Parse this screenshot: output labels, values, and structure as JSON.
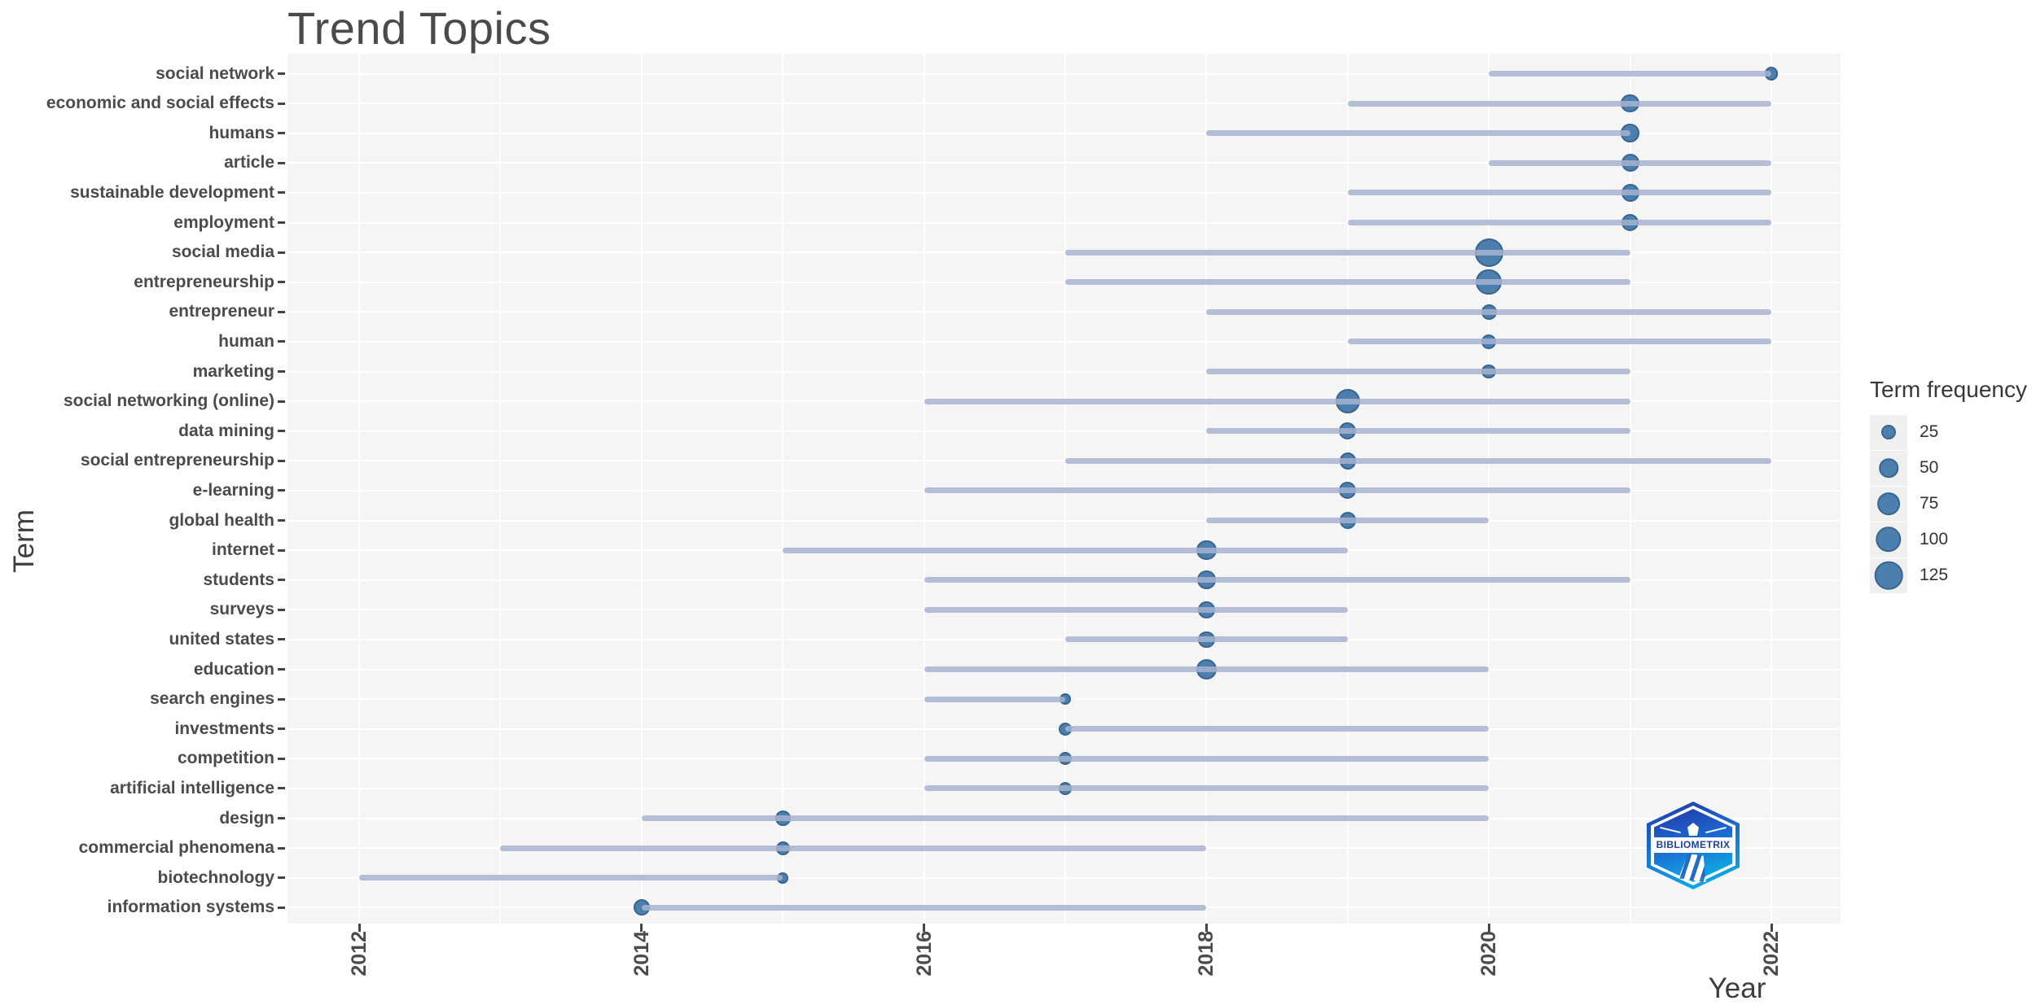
{
  "title": "Trend Topics",
  "x_axis": {
    "title": "Year",
    "tick_labels": [
      "2012",
      "2014",
      "2016",
      "2018",
      "2020",
      "2022"
    ]
  },
  "y_axis": {
    "title": "Term"
  },
  "legend": {
    "title": "Term frequency",
    "entries": [
      "25",
      "50",
      "75",
      "100",
      "125"
    ]
  },
  "logo": {
    "text": "BIBLIOMETRIX"
  },
  "colors": {
    "bubble_fill": "#4d7fae",
    "bubble_stroke": "#38658f",
    "trend_line": "rgba(167,179,208,0.85)",
    "panel_background": "#f5f5f6",
    "gridline": "#ffffff",
    "axis_text": "#4b4b4b",
    "title_text": "#4a4a4a"
  },
  "chart_data": {
    "type": "scatter",
    "title": "Trend Topics",
    "xlabel": "Year",
    "ylabel": "Term",
    "xlim": [
      2011.5,
      2022.5
    ],
    "x_ticks": [
      2012,
      2014,
      2016,
      2018,
      2020,
      2022
    ],
    "grid": true,
    "legend": {
      "title": "Term frequency",
      "position": "right-center",
      "sizes": [
        25,
        50,
        75,
        100,
        125
      ]
    },
    "rows": [
      {
        "term": "social network",
        "year_start": 2020,
        "year_end": 2022,
        "peak_year": 2022,
        "frequency": 20
      },
      {
        "term": "economic and social effects",
        "year_start": 2019,
        "year_end": 2022,
        "peak_year": 2021,
        "frequency": 45
      },
      {
        "term": "humans",
        "year_start": 2018,
        "year_end": 2021,
        "peak_year": 2021,
        "frequency": 45
      },
      {
        "term": "article",
        "year_start": 2020,
        "year_end": 2022,
        "peak_year": 2021,
        "frequency": 42
      },
      {
        "term": "sustainable development",
        "year_start": 2019,
        "year_end": 2022,
        "peak_year": 2021,
        "frequency": 42
      },
      {
        "term": "employment",
        "year_start": 2019,
        "year_end": 2022,
        "peak_year": 2021,
        "frequency": 40
      },
      {
        "term": "social media",
        "year_start": 2017,
        "year_end": 2021,
        "peak_year": 2020,
        "frequency": 128
      },
      {
        "term": "entrepreneurship",
        "year_start": 2017,
        "year_end": 2021,
        "peak_year": 2020,
        "frequency": 100
      },
      {
        "term": "entrepreneur",
        "year_start": 2018,
        "year_end": 2022,
        "peak_year": 2020,
        "frequency": 28
      },
      {
        "term": "human",
        "year_start": 2019,
        "year_end": 2022,
        "peak_year": 2020,
        "frequency": 24
      },
      {
        "term": "marketing",
        "year_start": 2018,
        "year_end": 2021,
        "peak_year": 2020,
        "frequency": 24
      },
      {
        "term": "social networking (online)",
        "year_start": 2016,
        "year_end": 2021,
        "peak_year": 2019,
        "frequency": 92
      },
      {
        "term": "data mining",
        "year_start": 2018,
        "year_end": 2021,
        "peak_year": 2019,
        "frequency": 38
      },
      {
        "term": "social entrepreneurship",
        "year_start": 2017,
        "year_end": 2022,
        "peak_year": 2019,
        "frequency": 35
      },
      {
        "term": "e-learning",
        "year_start": 2016,
        "year_end": 2021,
        "peak_year": 2019,
        "frequency": 38
      },
      {
        "term": "global health",
        "year_start": 2018,
        "year_end": 2020,
        "peak_year": 2019,
        "frequency": 35
      },
      {
        "term": "internet",
        "year_start": 2015,
        "year_end": 2019,
        "peak_year": 2018,
        "frequency": 55
      },
      {
        "term": "students",
        "year_start": 2016,
        "year_end": 2021,
        "peak_year": 2018,
        "frequency": 45
      },
      {
        "term": "surveys",
        "year_start": 2016,
        "year_end": 2019,
        "peak_year": 2018,
        "frequency": 35
      },
      {
        "term": "united states",
        "year_start": 2017,
        "year_end": 2019,
        "peak_year": 2018,
        "frequency": 35
      },
      {
        "term": "education",
        "year_start": 2016,
        "year_end": 2020,
        "peak_year": 2018,
        "frequency": 58
      },
      {
        "term": "search engines",
        "year_start": 2016,
        "year_end": 2017,
        "peak_year": 2017,
        "frequency": 12
      },
      {
        "term": "investments",
        "year_start": 2017,
        "year_end": 2020,
        "peak_year": 2017,
        "frequency": 18
      },
      {
        "term": "competition",
        "year_start": 2016,
        "year_end": 2020,
        "peak_year": 2017,
        "frequency": 18
      },
      {
        "term": "artificial intelligence",
        "year_start": 2016,
        "year_end": 2020,
        "peak_year": 2017,
        "frequency": 20
      },
      {
        "term": "design",
        "year_start": 2014,
        "year_end": 2020,
        "peak_year": 2015,
        "frequency": 28
      },
      {
        "term": "commercial phenomena",
        "year_start": 2013,
        "year_end": 2018,
        "peak_year": 2015,
        "frequency": 22
      },
      {
        "term": "biotechnology",
        "year_start": 2012,
        "year_end": 2015,
        "peak_year": 2015,
        "frequency": 12
      },
      {
        "term": "information systems",
        "year_start": 2014,
        "year_end": 2018,
        "peak_year": 2014,
        "frequency": 32
      }
    ]
  }
}
